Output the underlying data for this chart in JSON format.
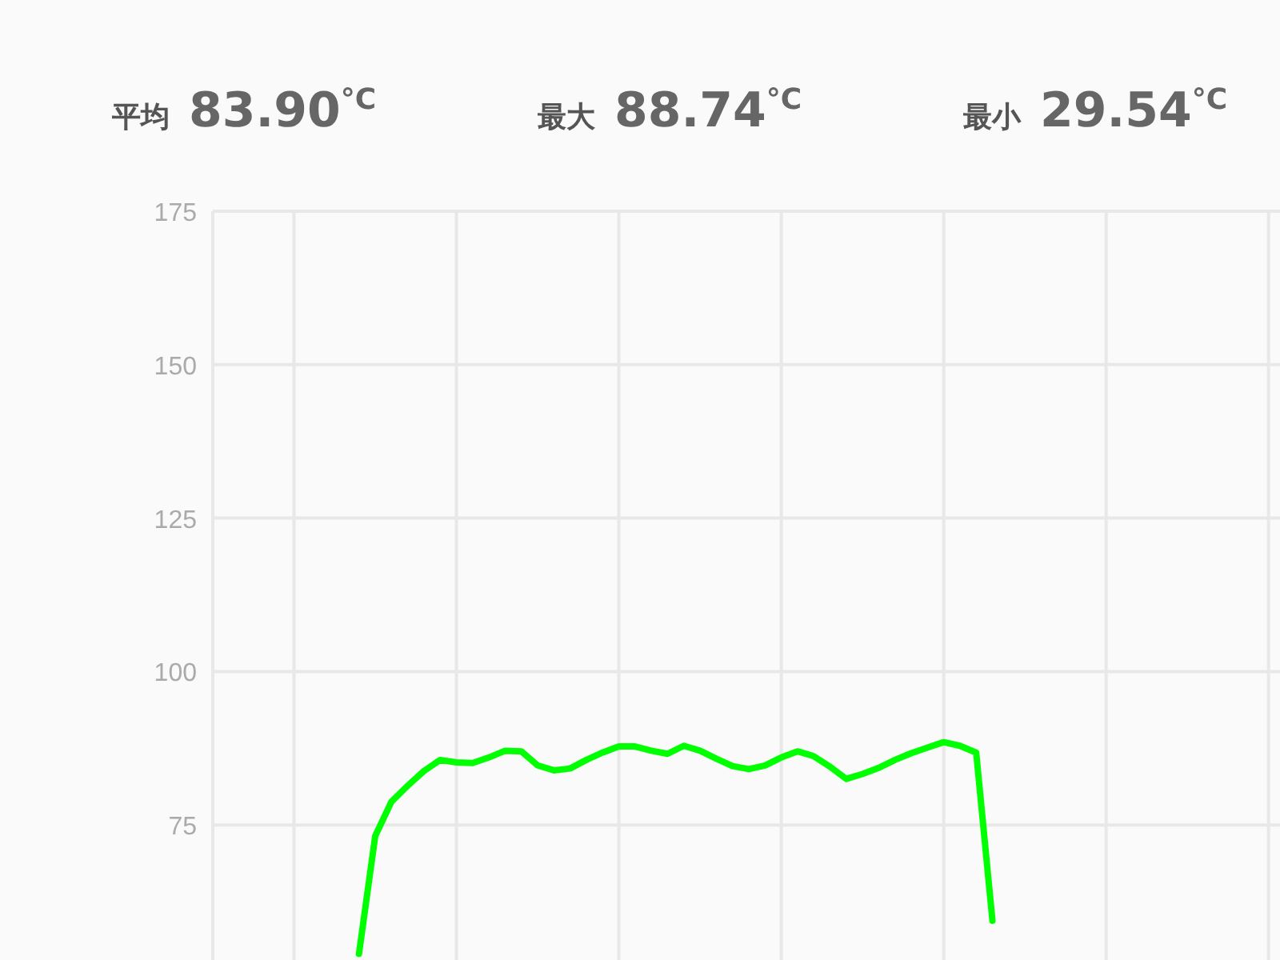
{
  "chart_data": {
    "type": "line",
    "annotations": [
      "平均 83.90$^{°C}$",
      "最大 88.74$^{°C}$",
      "最小 29.54$^{°C}$"
    ],
    "categories": [
      null,
      null,
      null,
      null,
      null,
      null,
      null,
      null,
      null,
      null,
      null,
      null,
      null,
      null,
      null,
      null,
      null,
      null,
      null,
      null,
      null,
      null,
      null,
      null,
      null,
      null,
      null,
      null,
      null,
      null,
      null,
      null,
      null,
      null,
      null,
      null,
      null,
      null,
      null,
      null,
      null,
      null,
      null,
      null,
      null,
      null,
      null,
      null,
      null,
      null,
      null,
      null,
      null,
      null,
      null,
      null,
      null,
      null,
      null,
      null,
      null,
      null,
      null,
      null,
      null,
      null,
      null
    ],
    "series": [
      {
        "color": "#00ff00",
        "values": [
          null,
          null,
          null,
          null,
          null,
          null,
          null,
          null,
          null,
          54,
          73.2,
          78.8,
          81.4,
          83.8,
          85.6,
          85.2,
          85.1,
          86.0,
          87.1,
          87.0,
          84.7,
          83.9,
          84.2,
          85.6,
          86.8,
          87.8,
          87.8,
          87.1,
          86.6,
          87.9,
          87.1,
          85.8,
          84.6,
          84.1,
          84.7,
          86.0,
          87.0,
          86.2,
          84.5,
          82.5,
          83.3,
          84.3,
          85.6,
          86.7,
          87.6,
          88.5,
          87.9,
          86.8,
          59.4,
          null,
          null,
          null,
          null,
          null,
          null,
          null,
          null,
          null,
          null,
          null,
          null,
          null,
          null,
          null,
          null,
          null,
          null
        ]
      }
    ],
    "ylim": [
      53,
      175
    ],
    "yticks": [
      75,
      100,
      125,
      150,
      175
    ],
    "grid": true,
    "tick_labels": "y",
    "marker": "none",
    "line_style": "solid"
  }
}
